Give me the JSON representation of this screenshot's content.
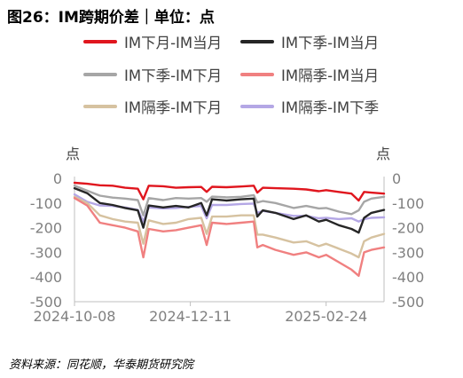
{
  "figure": {
    "title": "图26：IM跨期价差｜单位：点",
    "source": "资料来源：同花顺，华泰期货研究院"
  },
  "chart_data": {
    "type": "line",
    "title": "IM跨期价差",
    "unit_left": "点",
    "unit_right": "点",
    "ylim": [
      -500,
      0
    ],
    "yticks": [
      0,
      -100,
      -200,
      -300,
      -400,
      -500
    ],
    "ytick_labels": [
      "0",
      "-100",
      "-200",
      "-300",
      "-400",
      "-500"
    ],
    "x_start": "2024-10-08",
    "x_end": "2025-03-28",
    "xticks": [
      "2024-10-08",
      "2024-12-11",
      "2025-02-24"
    ],
    "legend_position": "top",
    "x": [
      "2024-10-08",
      "2024-10-15",
      "2024-10-22",
      "2024-10-29",
      "2024-11-05",
      "2024-11-12",
      "2024-11-15",
      "2024-11-18",
      "2024-11-26",
      "2024-12-03",
      "2024-12-10",
      "2024-12-17",
      "2024-12-20",
      "2024-12-23",
      "2024-12-31",
      "2025-01-08",
      "2025-01-15",
      "2025-01-17",
      "2025-01-20",
      "2025-01-27",
      "2025-02-06",
      "2025-02-13",
      "2025-02-20",
      "2025-02-24",
      "2025-03-03",
      "2025-03-10",
      "2025-03-14",
      "2025-03-17",
      "2025-03-21",
      "2025-03-28"
    ],
    "series": [
      {
        "name": "IM下月-IM当月",
        "color": "#e0161e",
        "values": [
          -18,
          -22,
          -28,
          -30,
          -38,
          -42,
          -85,
          -30,
          -32,
          -38,
          -36,
          -35,
          -55,
          -34,
          -36,
          -33,
          -30,
          -58,
          -38,
          -40,
          -42,
          -45,
          -52,
          -48,
          -55,
          -62,
          -90,
          -55,
          -58,
          -62
        ]
      },
      {
        "name": "IM下季-IM当月",
        "color": "#262626",
        "values": [
          -40,
          -60,
          -100,
          -108,
          -120,
          -130,
          -200,
          -110,
          -118,
          -112,
          -118,
          -100,
          -150,
          -85,
          -90,
          -85,
          -82,
          -155,
          -130,
          -140,
          -165,
          -150,
          -175,
          -168,
          -190,
          -205,
          -220,
          -160,
          -140,
          -128
        ]
      },
      {
        "name": "IM下季-IM下月",
        "color": "#a6a6a6",
        "values": [
          -30,
          -50,
          -70,
          -78,
          -82,
          -88,
          -150,
          -80,
          -88,
          -80,
          -82,
          -80,
          -95,
          -74,
          -77,
          -75,
          -68,
          -98,
          -92,
          -100,
          -120,
          -112,
          -122,
          -120,
          -135,
          -145,
          -130,
          -95,
          -82,
          -75
        ]
      },
      {
        "name": "IM隔季-IM当月",
        "color": "#f08080",
        "values": [
          -80,
          -110,
          -180,
          -190,
          -200,
          -215,
          -320,
          -205,
          -215,
          -210,
          -200,
          -190,
          -270,
          -180,
          -185,
          -180,
          -175,
          -280,
          -270,
          -290,
          -310,
          -300,
          -320,
          -310,
          -340,
          -370,
          -395,
          -300,
          -290,
          -280
        ]
      },
      {
        "name": "IM隔季-IM下月",
        "color": "#d6c2a0",
        "values": [
          -75,
          -100,
          -150,
          -165,
          -175,
          -180,
          -265,
          -170,
          -185,
          -180,
          -165,
          -160,
          -225,
          -155,
          -155,
          -150,
          -150,
          -228,
          -228,
          -240,
          -260,
          -255,
          -275,
          -265,
          -285,
          -305,
          -320,
          -255,
          -240,
          -225
        ]
      },
      {
        "name": "IM隔季-IM下季",
        "color": "#b4a7e5",
        "values": [
          -65,
          -95,
          -110,
          -112,
          -118,
          -128,
          -175,
          -118,
          -122,
          -120,
          -116,
          -112,
          -162,
          -108,
          -108,
          -104,
          -102,
          -140,
          -132,
          -140,
          -152,
          -152,
          -162,
          -160,
          -165,
          -162,
          -175,
          -165,
          -160,
          -158
        ]
      }
    ]
  }
}
